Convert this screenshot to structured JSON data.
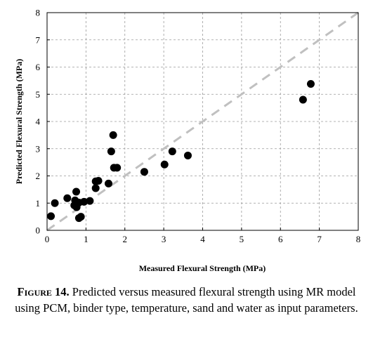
{
  "chart_data": {
    "type": "scatter",
    "xlabel": "Measured Flexural Strength (MPa)",
    "ylabel": "Predicted Flexural Strength (MPa)",
    "xlim": [
      0,
      8
    ],
    "ylim": [
      0,
      8
    ],
    "x_ticks": [
      "0",
      "1",
      "2",
      "3",
      "4",
      "5",
      "6",
      "7",
      "8"
    ],
    "y_ticks": [
      "0",
      "1",
      "2",
      "3",
      "4",
      "5",
      "6",
      "7",
      "8"
    ],
    "grid": true,
    "reference_line": {
      "style": "dashed",
      "from": [
        0,
        0
      ],
      "to": [
        8,
        8
      ],
      "color": "#c0c0c0"
    },
    "marker_color": "#000000",
    "points": [
      {
        "x": 0.1,
        "y": 0.52
      },
      {
        "x": 0.2,
        "y": 1.0
      },
      {
        "x": 0.52,
        "y": 1.18
      },
      {
        "x": 0.75,
        "y": 1.42
      },
      {
        "x": 0.72,
        "y": 1.1
      },
      {
        "x": 0.7,
        "y": 0.92
      },
      {
        "x": 0.76,
        "y": 0.85
      },
      {
        "x": 0.82,
        "y": 1.02
      },
      {
        "x": 0.95,
        "y": 1.05
      },
      {
        "x": 1.1,
        "y": 1.08
      },
      {
        "x": 0.82,
        "y": 0.45
      },
      {
        "x": 0.87,
        "y": 0.5
      },
      {
        "x": 1.25,
        "y": 1.55
      },
      {
        "x": 1.25,
        "y": 1.8
      },
      {
        "x": 1.32,
        "y": 1.82
      },
      {
        "x": 1.58,
        "y": 1.72
      },
      {
        "x": 1.65,
        "y": 2.9
      },
      {
        "x": 1.7,
        "y": 3.5
      },
      {
        "x": 1.72,
        "y": 2.3
      },
      {
        "x": 1.8,
        "y": 2.3
      },
      {
        "x": 2.5,
        "y": 2.15
      },
      {
        "x": 3.02,
        "y": 2.42
      },
      {
        "x": 3.22,
        "y": 2.9
      },
      {
        "x": 3.62,
        "y": 2.75
      },
      {
        "x": 6.58,
        "y": 4.8
      },
      {
        "x": 6.78,
        "y": 5.38
      }
    ]
  },
  "caption": {
    "label": "Figure 14.",
    "text": "Predicted versus measured flexural strength using MR model using PCM, binder type, temperature, sand and water as input parameters."
  }
}
